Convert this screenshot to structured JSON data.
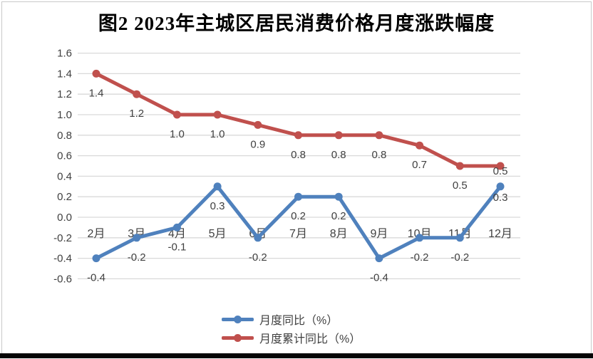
{
  "title": "图2 2023年主城区居民消费价格月度涨跌幅度",
  "chart_data": {
    "type": "line",
    "title": "图2 2023年主城区居民消费价格月度涨跌幅度",
    "categories": [
      "2月",
      "3月",
      "4月",
      "5月",
      "6月",
      "7月",
      "8月",
      "9月",
      "10月",
      "11月",
      "12月"
    ],
    "series": [
      {
        "key": "monthly-yoy",
        "name": "月度同比（%）",
        "color": "#4F81BD",
        "values": [
          -0.4,
          -0.2,
          -0.1,
          0.3,
          -0.2,
          0.2,
          0.2,
          -0.4,
          -0.2,
          -0.2,
          0.3
        ]
      },
      {
        "key": "monthly-cumulative-yoy",
        "name": "月度累计同比（%）",
        "color": "#C0504D",
        "values": [
          1.4,
          1.2,
          1.0,
          1.0,
          0.9,
          0.8,
          0.8,
          0.8,
          0.7,
          0.5,
          0.5
        ]
      }
    ],
    "xlabel": "",
    "ylabel": "",
    "ylim": [
      -0.6,
      1.6
    ],
    "ytick_step": 0.2,
    "ytick_labels": [
      "1.6",
      "1.4",
      "1.2",
      "1.0",
      "0.8",
      "0.6",
      "0.4",
      "0.2",
      "0.0",
      "-0.2",
      "-0.4",
      "-0.6"
    ],
    "grid": true,
    "gridline_color": "#D9D9D9",
    "text_color": "#404040",
    "data_labels": "below",
    "label_dy_default": 27,
    "label_dy_overrides": [
      {
        "series": 0,
        "index": 10,
        "dy": 15
      },
      {
        "series": 1,
        "index": 10,
        "dy": 7
      }
    ],
    "legend_position": "bottom",
    "category_labels_position": "below-zero-axis"
  }
}
